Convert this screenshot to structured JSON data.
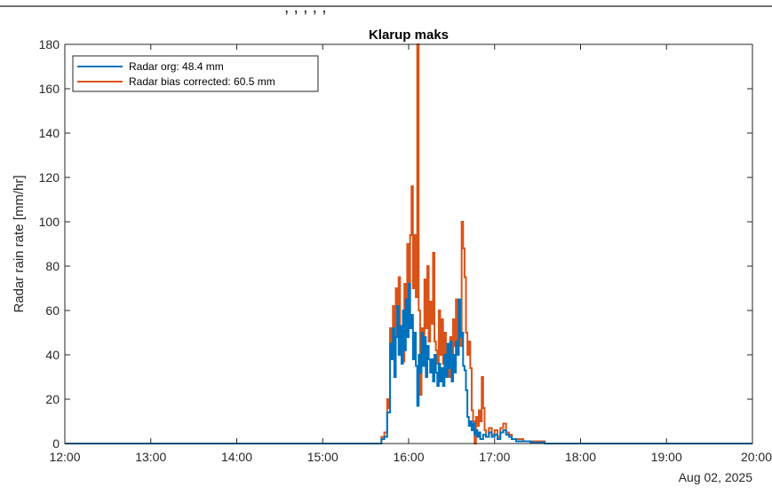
{
  "top_caption": ", , , , ,",
  "chart_data": {
    "type": "line",
    "title": "Klarup maks",
    "xlabel": "",
    "ylabel": "Radar rain rate [mm/hr]",
    "date_label": "Aug 02, 2025",
    "x_tick_labels": [
      "12:00",
      "13:00",
      "14:00",
      "15:00",
      "16:00",
      "17:00",
      "18:00",
      "19:00",
      "20:00"
    ],
    "y_ticks": [
      0,
      20,
      40,
      60,
      80,
      100,
      120,
      140,
      160,
      180
    ],
    "xlim": [
      "12:00",
      "20:00"
    ],
    "ylim": [
      0,
      180
    ],
    "grid": false,
    "legend_position": "top-left",
    "series": [
      {
        "name": "Radar org: 48.4 mm",
        "color": "#0072BD",
        "points": [
          [
            "12:00",
            0
          ],
          [
            "15:40",
            0
          ],
          [
            "15:41",
            2
          ],
          [
            "15:43",
            3
          ],
          [
            "15:45",
            14
          ],
          [
            "15:47",
            45
          ],
          [
            "15:48",
            38
          ],
          [
            "15:49",
            52
          ],
          [
            "15:50",
            30
          ],
          [
            "15:51",
            48
          ],
          [
            "15:52",
            62
          ],
          [
            "15:53",
            40
          ],
          [
            "15:54",
            53
          ],
          [
            "15:55",
            36
          ],
          [
            "15:56",
            60
          ],
          [
            "15:57",
            42
          ],
          [
            "15:58",
            65
          ],
          [
            "15:59",
            48
          ],
          [
            "16:00",
            72
          ],
          [
            "16:01",
            52
          ],
          [
            "16:02",
            58
          ],
          [
            "16:03",
            38
          ],
          [
            "16:04",
            50
          ],
          [
            "16:05",
            35
          ],
          [
            "16:06",
            17
          ],
          [
            "16:07",
            40
          ],
          [
            "16:08",
            32
          ],
          [
            "16:09",
            50
          ],
          [
            "16:10",
            35
          ],
          [
            "16:11",
            48
          ],
          [
            "16:12",
            30
          ],
          [
            "16:13",
            44
          ],
          [
            "16:14",
            38
          ],
          [
            "16:15",
            32
          ],
          [
            "16:16",
            38
          ],
          [
            "16:17",
            28
          ],
          [
            "16:18",
            40
          ],
          [
            "16:19",
            32
          ],
          [
            "16:20",
            26
          ],
          [
            "16:21",
            36
          ],
          [
            "16:22",
            28
          ],
          [
            "16:23",
            34
          ],
          [
            "16:24",
            26
          ],
          [
            "16:25",
            40
          ],
          [
            "16:26",
            30
          ],
          [
            "16:27",
            45
          ],
          [
            "16:28",
            34
          ],
          [
            "16:29",
            46
          ],
          [
            "16:30",
            28
          ],
          [
            "16:31",
            40
          ],
          [
            "16:32",
            32
          ],
          [
            "16:33",
            46
          ],
          [
            "16:34",
            40
          ],
          [
            "16:35",
            65
          ],
          [
            "16:36",
            48
          ],
          [
            "16:37",
            50
          ],
          [
            "16:38",
            35
          ],
          [
            "16:39",
            33
          ],
          [
            "16:40",
            24
          ],
          [
            "16:41",
            12
          ],
          [
            "16:42",
            8
          ],
          [
            "16:43",
            10
          ],
          [
            "16:44",
            6
          ],
          [
            "16:45",
            9
          ],
          [
            "16:46",
            4
          ],
          [
            "16:47",
            6
          ],
          [
            "16:48",
            3
          ],
          [
            "16:49",
            5
          ],
          [
            "16:50",
            2
          ],
          [
            "16:52",
            4
          ],
          [
            "16:54",
            3
          ],
          [
            "16:56",
            5
          ],
          [
            "16:58",
            3
          ],
          [
            "17:00",
            4
          ],
          [
            "17:02",
            2
          ],
          [
            "17:04",
            5
          ],
          [
            "17:06",
            6
          ],
          [
            "17:08",
            4
          ],
          [
            "17:10",
            3
          ],
          [
            "17:12",
            2
          ],
          [
            "17:15",
            1
          ],
          [
            "17:20",
            1
          ],
          [
            "17:25",
            0.5
          ],
          [
            "17:30",
            0.5
          ],
          [
            "17:35",
            0
          ],
          [
            "20:00",
            0
          ]
        ]
      },
      {
        "name": "Radar bias corrected: 60.5 mm",
        "color": "#D95319",
        "points": [
          [
            "12:00",
            0
          ],
          [
            "15:40",
            0
          ],
          [
            "15:41",
            3
          ],
          [
            "15:43",
            5
          ],
          [
            "15:45",
            20
          ],
          [
            "15:46",
            16
          ],
          [
            "15:47",
            52
          ],
          [
            "15:48",
            44
          ],
          [
            "15:49",
            62
          ],
          [
            "15:50",
            38
          ],
          [
            "15:51",
            70
          ],
          [
            "15:52",
            56
          ],
          [
            "15:53",
            75
          ],
          [
            "15:54",
            45
          ],
          [
            "15:55",
            50
          ],
          [
            "15:56",
            37
          ],
          [
            "15:57",
            72
          ],
          [
            "15:58",
            48
          ],
          [
            "15:59",
            90
          ],
          [
            "16:00",
            60
          ],
          [
            "16:01",
            94
          ],
          [
            "16:02",
            116
          ],
          [
            "16:03",
            70
          ],
          [
            "16:04",
            94
          ],
          [
            "16:05",
            66
          ],
          [
            "16:06",
            180
          ],
          [
            "16:07",
            60
          ],
          [
            "16:08",
            22
          ],
          [
            "16:09",
            52
          ],
          [
            "16:10",
            40
          ],
          [
            "16:11",
            74
          ],
          [
            "16:12",
            52
          ],
          [
            "16:13",
            80
          ],
          [
            "16:14",
            46
          ],
          [
            "16:15",
            64
          ],
          [
            "16:16",
            54
          ],
          [
            "16:17",
            86
          ],
          [
            "16:18",
            46
          ],
          [
            "16:19",
            42
          ],
          [
            "16:20",
            36
          ],
          [
            "16:21",
            60
          ],
          [
            "16:22",
            40
          ],
          [
            "16:23",
            56
          ],
          [
            "16:24",
            36
          ],
          [
            "16:25",
            50
          ],
          [
            "16:26",
            34
          ],
          [
            "16:27",
            42
          ],
          [
            "16:28",
            30
          ],
          [
            "16:29",
            48
          ],
          [
            "16:30",
            40
          ],
          [
            "16:31",
            56
          ],
          [
            "16:32",
            44
          ],
          [
            "16:33",
            65
          ],
          [
            "16:34",
            40
          ],
          [
            "16:35",
            60
          ],
          [
            "16:36",
            44
          ],
          [
            "16:37",
            100
          ],
          [
            "16:38",
            88
          ],
          [
            "16:39",
            75
          ],
          [
            "16:40",
            50
          ],
          [
            "16:41",
            40
          ],
          [
            "16:42",
            46
          ],
          [
            "16:43",
            34
          ],
          [
            "16:44",
            15
          ],
          [
            "16:45",
            10
          ],
          [
            "16:46",
            0
          ],
          [
            "16:47",
            12
          ],
          [
            "16:48",
            8
          ],
          [
            "16:49",
            15
          ],
          [
            "16:50",
            10
          ],
          [
            "16:51",
            30
          ],
          [
            "16:52",
            16
          ],
          [
            "16:53",
            6
          ],
          [
            "16:54",
            3
          ],
          [
            "16:56",
            7
          ],
          [
            "16:58",
            4
          ],
          [
            "17:00",
            6
          ],
          [
            "17:02",
            3
          ],
          [
            "17:04",
            7
          ],
          [
            "17:06",
            9
          ],
          [
            "17:08",
            5
          ],
          [
            "17:10",
            4
          ],
          [
            "17:12",
            2
          ],
          [
            "17:15",
            2
          ],
          [
            "17:20",
            1
          ],
          [
            "17:25",
            1
          ],
          [
            "17:30",
            1
          ],
          [
            "17:35",
            0
          ],
          [
            "20:00",
            0
          ]
        ]
      }
    ]
  }
}
